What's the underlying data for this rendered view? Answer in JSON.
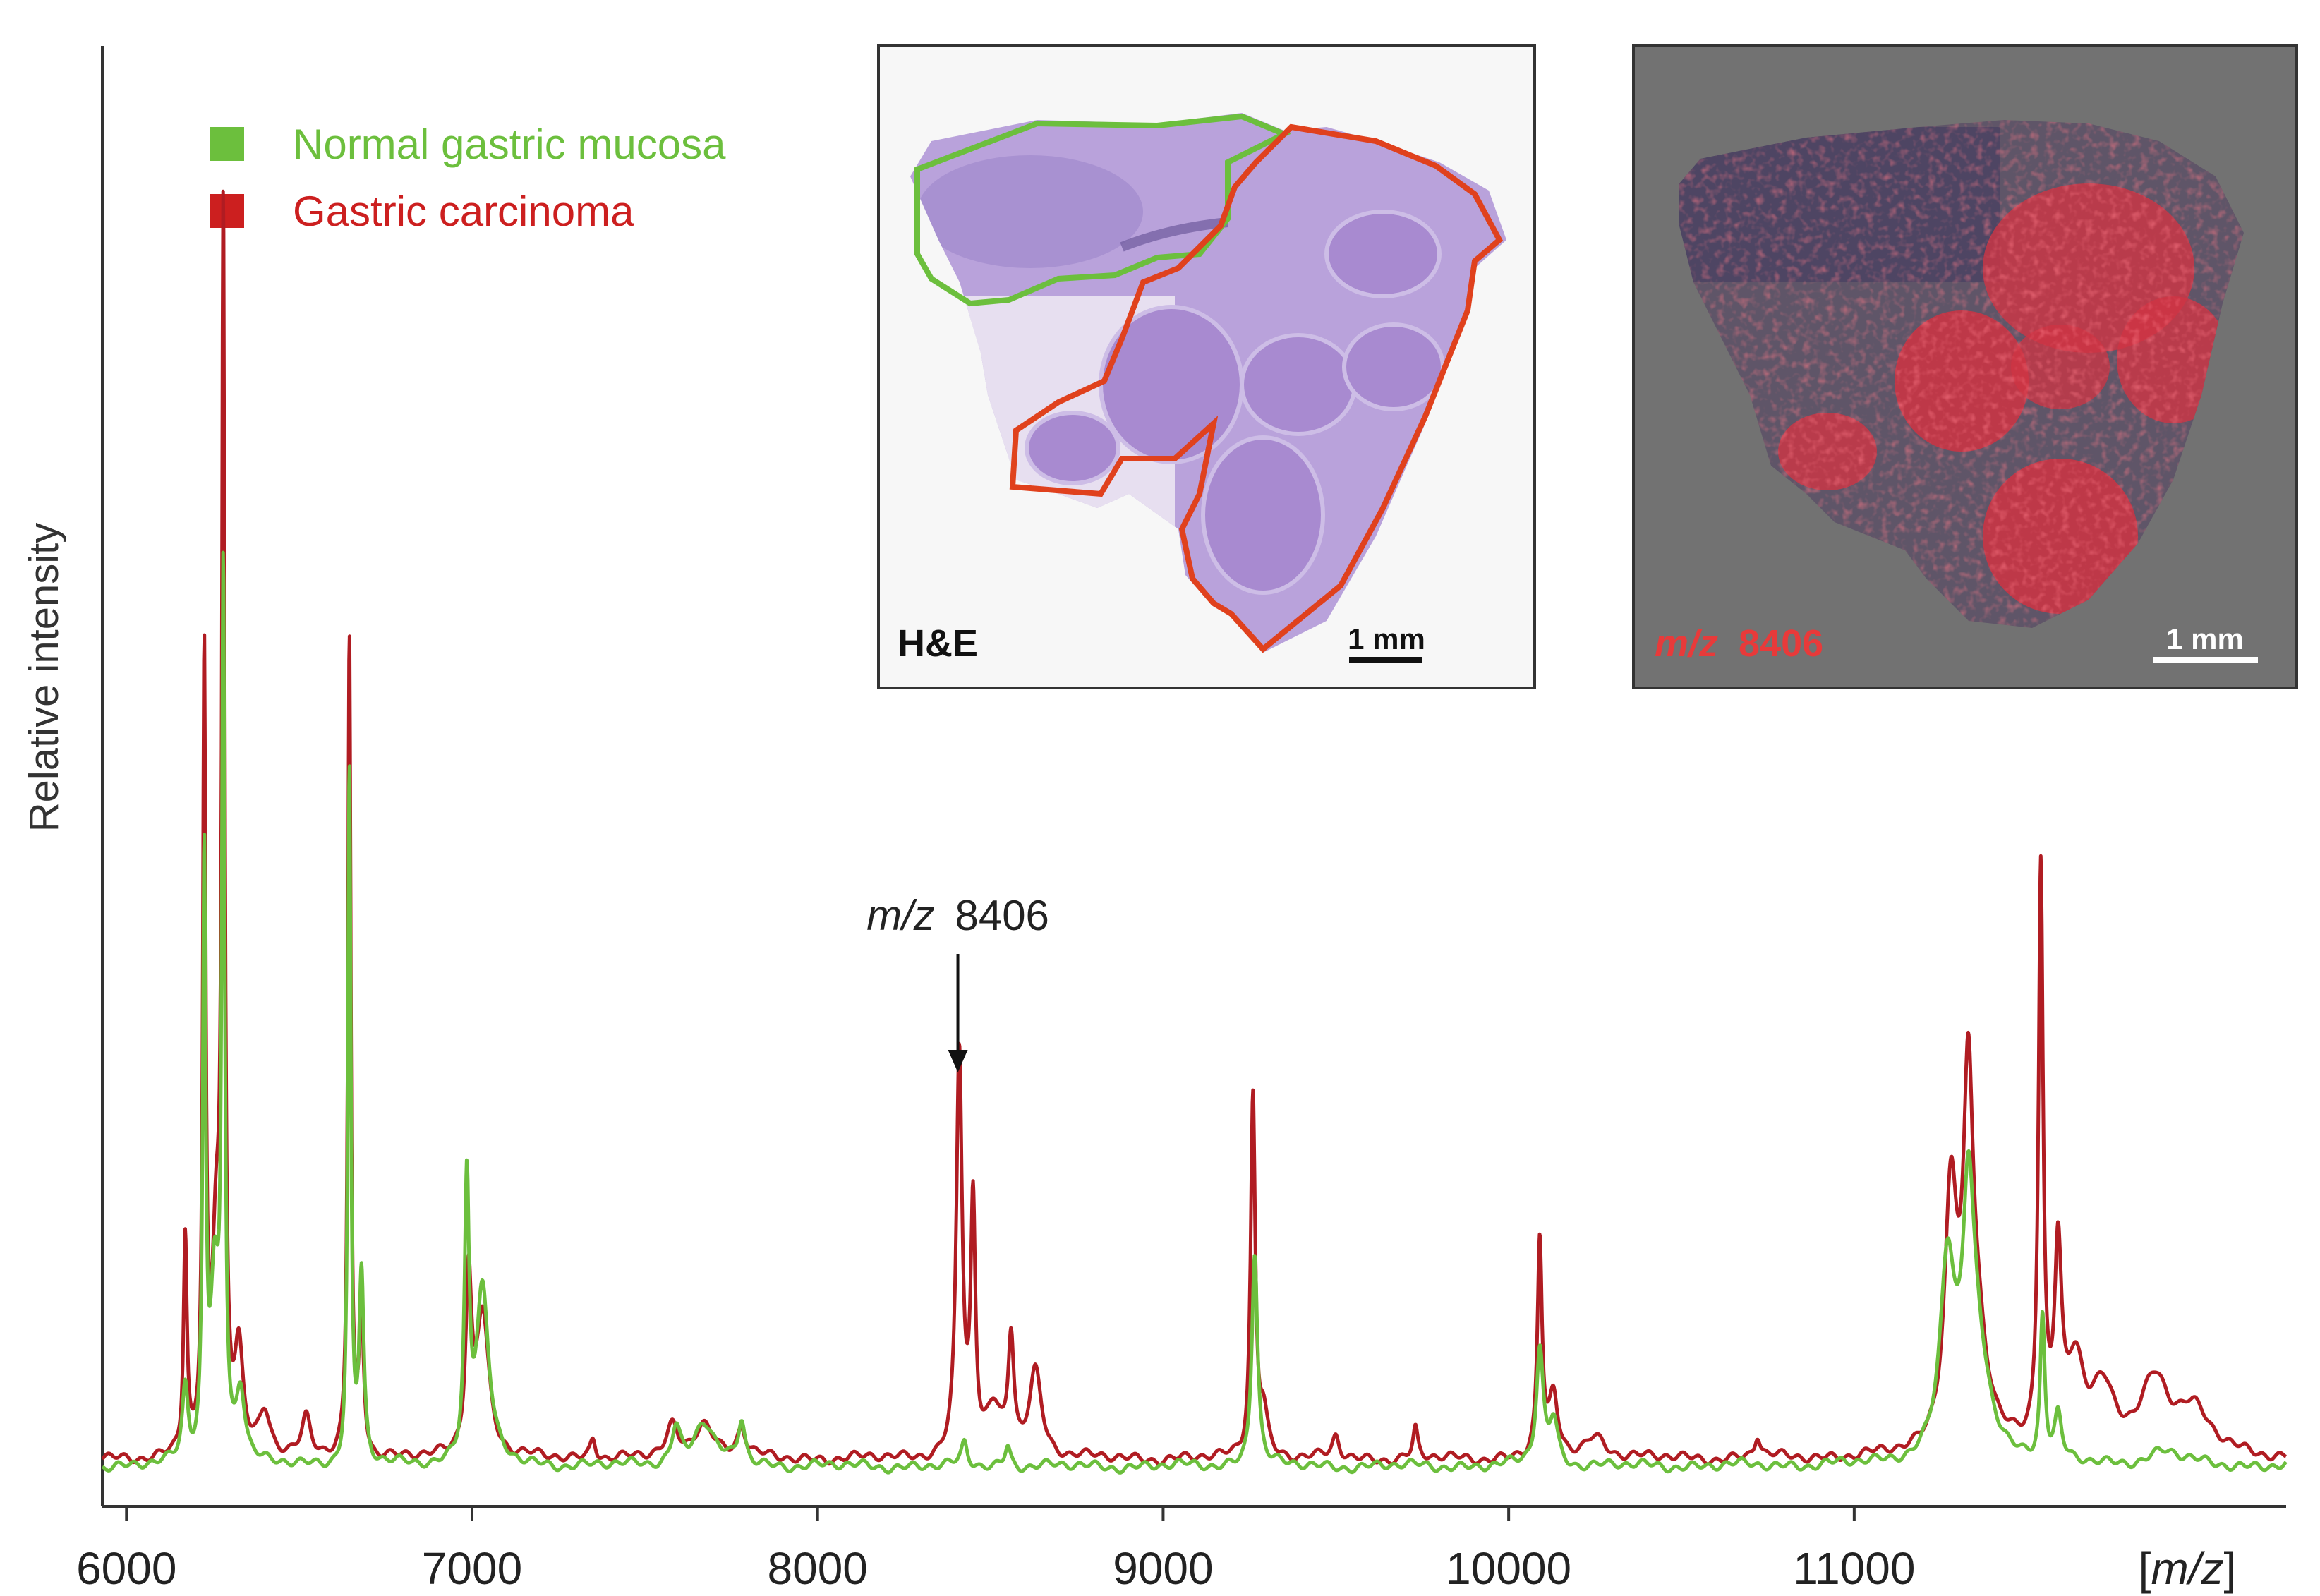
{
  "chart_data": {
    "type": "line",
    "title": "",
    "xlabel": "[m/z]",
    "ylabel": "Relative intensity",
    "xlim": [
      5930,
      12250
    ],
    "ylim": [
      0,
      100
    ],
    "xticks": [
      6000,
      7000,
      8000,
      9000,
      10000,
      11000
    ],
    "xtick_labels": [
      "6000",
      "7000",
      "8000",
      "9000",
      "10000",
      "11000"
    ],
    "grid": false,
    "legend_position": "top-left",
    "series": [
      {
        "name": "Gastric carcinoma",
        "color": "#b01c22",
        "baseline": 2.3,
        "peaks": [
          {
            "x": 6170,
            "h": 15,
            "w": 6
          },
          {
            "x": 6225,
            "h": 54,
            "w": 5
          },
          {
            "x": 6260,
            "h": 14,
            "w": 15
          },
          {
            "x": 6280,
            "h": 82,
            "w": 5
          },
          {
            "x": 6325,
            "h": 7,
            "w": 15
          },
          {
            "x": 6400,
            "h": 3,
            "w": 20
          },
          {
            "x": 6520,
            "h": 2.5,
            "w": 15
          },
          {
            "x": 6645,
            "h": 57,
            "w": 5
          },
          {
            "x": 6680,
            "h": 10,
            "w": 8
          },
          {
            "x": 6990,
            "h": 12,
            "w": 10
          },
          {
            "x": 7030,
            "h": 10,
            "w": 22
          },
          {
            "x": 7350,
            "h": 1.5,
            "w": 10
          },
          {
            "x": 7580,
            "h": 2,
            "w": 20
          },
          {
            "x": 7670,
            "h": 2.5,
            "w": 35
          },
          {
            "x": 7780,
            "h": 2,
            "w": 15
          },
          {
            "x": 8410,
            "h": 28,
            "w": 10
          },
          {
            "x": 8450,
            "h": 17,
            "w": 8
          },
          {
            "x": 8510,
            "h": 3,
            "w": 25
          },
          {
            "x": 8560,
            "h": 8,
            "w": 10
          },
          {
            "x": 8630,
            "h": 6,
            "w": 22
          },
          {
            "x": 9260,
            "h": 25,
            "w": 8
          },
          {
            "x": 9290,
            "h": 3,
            "w": 15
          },
          {
            "x": 9500,
            "h": 1.5,
            "w": 12
          },
          {
            "x": 9730,
            "h": 2,
            "w": 8
          },
          {
            "x": 10090,
            "h": 15,
            "w": 8
          },
          {
            "x": 10130,
            "h": 4,
            "w": 15
          },
          {
            "x": 10250,
            "h": 1.5,
            "w": 40
          },
          {
            "x": 10720,
            "h": 1.5,
            "w": 10
          },
          {
            "x": 11280,
            "h": 17,
            "w": 22
          },
          {
            "x": 11330,
            "h": 20,
            "w": 16
          },
          {
            "x": 11350,
            "h": 8,
            "w": 40
          },
          {
            "x": 11540,
            "h": 40,
            "w": 8
          },
          {
            "x": 11590,
            "h": 13,
            "w": 12
          },
          {
            "x": 11640,
            "h": 6,
            "w": 30
          },
          {
            "x": 11720,
            "h": 4,
            "w": 40
          },
          {
            "x": 11870,
            "h": 5,
            "w": 50
          },
          {
            "x": 11980,
            "h": 3,
            "w": 60
          }
        ]
      },
      {
        "name": "Normal gastric mucosa",
        "color": "#6cbf3d",
        "baseline": 1.8,
        "peaks": [
          {
            "x": 6170,
            "h": 5,
            "w": 10
          },
          {
            "x": 6225,
            "h": 41,
            "w": 5
          },
          {
            "x": 6255,
            "h": 12,
            "w": 15
          },
          {
            "x": 6280,
            "h": 60,
            "w": 5
          },
          {
            "x": 6330,
            "h": 5,
            "w": 15
          },
          {
            "x": 6645,
            "h": 48,
            "w": 5
          },
          {
            "x": 6680,
            "h": 13,
            "w": 8
          },
          {
            "x": 6985,
            "h": 19,
            "w": 8
          },
          {
            "x": 7030,
            "h": 12,
            "w": 22
          },
          {
            "x": 7590,
            "h": 2.5,
            "w": 15
          },
          {
            "x": 7670,
            "h": 3,
            "w": 35
          },
          {
            "x": 7780,
            "h": 3,
            "w": 12
          },
          {
            "x": 8425,
            "h": 1.5,
            "w": 10
          },
          {
            "x": 8550,
            "h": 1.5,
            "w": 10
          },
          {
            "x": 9265,
            "h": 15,
            "w": 10
          },
          {
            "x": 10090,
            "h": 8,
            "w": 12
          },
          {
            "x": 10130,
            "h": 3,
            "w": 15
          },
          {
            "x": 11270,
            "h": 13,
            "w": 25
          },
          {
            "x": 11330,
            "h": 13,
            "w": 18
          },
          {
            "x": 11350,
            "h": 8,
            "w": 45
          },
          {
            "x": 11545,
            "h": 10,
            "w": 8
          },
          {
            "x": 11590,
            "h": 3,
            "w": 12
          },
          {
            "x": 11900,
            "h": 1,
            "w": 60
          }
        ]
      }
    ],
    "annotations": [
      {
        "label_italic": "m/z",
        "label_value": "8406",
        "x": 8406,
        "arrow": true
      }
    ]
  },
  "legend": {
    "items": [
      {
        "label": "Normal gastric mucosa",
        "color": "#6cbf3d"
      },
      {
        "label": "Gastric carcinoma",
        "color": "#cc1f1f"
      }
    ]
  },
  "insets": {
    "he": {
      "label": "H&E",
      "scale": "1 mm",
      "normal_outline_color": "#6cbf3d",
      "tumor_outline_color": "#e0411d"
    },
    "msi": {
      "label_italic": "m/z",
      "label_value": "8406",
      "scale": "1 mm",
      "label_color": "#e83a3a"
    }
  }
}
